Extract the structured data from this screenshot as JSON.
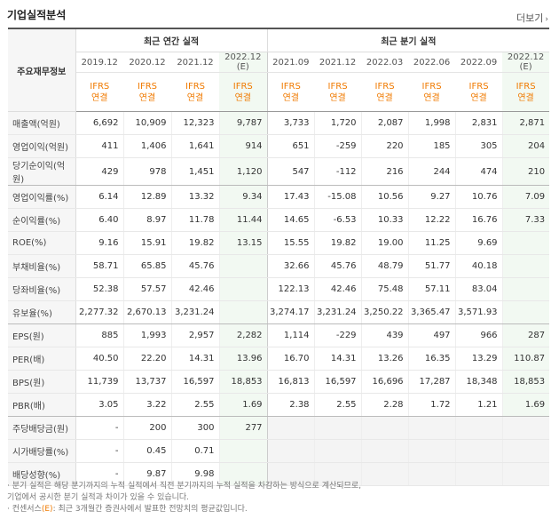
{
  "title": "기업실적분석",
  "more_label": "더보기",
  "header": {
    "main_label": "주요재무정보",
    "annual_label": "최근 연간 실적",
    "quarter_label": "최근 분기 실적",
    "annual_periods": [
      "2019.12",
      "2020.12",
      "2021.12",
      "2022.12"
    ],
    "annual_est": [
      false,
      false,
      false,
      true
    ],
    "quarter_periods": [
      "2021.09",
      "2021.12",
      "2022.03",
      "2022.06",
      "2022.09",
      "2022.12"
    ],
    "quarter_est": [
      false,
      false,
      false,
      false,
      false,
      true
    ],
    "est_mark": "(E)",
    "ifrs": "IFRS",
    "consol": "연결"
  },
  "rows": [
    {
      "label": "매출액(억원)",
      "annual": [
        "6,692",
        "10,909",
        "12,323",
        "9,787"
      ],
      "quarter": [
        "3,733",
        "1,720",
        "2,087",
        "1,998",
        "2,831",
        "2,871"
      ]
    },
    {
      "label": "영업이익(억원)",
      "annual": [
        "411",
        "1,406",
        "1,641",
        "914"
      ],
      "quarter": [
        "651",
        "-259",
        "220",
        "185",
        "305",
        "204"
      ]
    },
    {
      "label": "당기순이익(억원)",
      "annual": [
        "429",
        "978",
        "1,451",
        "1,120"
      ],
      "quarter": [
        "547",
        "-112",
        "216",
        "244",
        "474",
        "210"
      ]
    },
    {
      "label": "영업이익률(%)",
      "annual": [
        "6.14",
        "12.89",
        "13.32",
        "9.34"
      ],
      "quarter": [
        "17.43",
        "-15.08",
        "10.56",
        "9.27",
        "10.76",
        "7.09"
      ]
    },
    {
      "label": "순이익률(%)",
      "annual": [
        "6.40",
        "8.97",
        "11.78",
        "11.44"
      ],
      "quarter": [
        "14.65",
        "-6.53",
        "10.33",
        "12.22",
        "16.76",
        "7.33"
      ]
    },
    {
      "label": "ROE(%)",
      "annual": [
        "9.16",
        "15.91",
        "19.82",
        "13.15"
      ],
      "quarter": [
        "15.55",
        "19.82",
        "19.00",
        "11.25",
        "9.69",
        ""
      ]
    },
    {
      "label": "부채비율(%)",
      "annual": [
        "58.71",
        "65.85",
        "45.76",
        ""
      ],
      "quarter": [
        "32.66",
        "45.76",
        "48.79",
        "51.77",
        "40.18",
        ""
      ]
    },
    {
      "label": "당좌비율(%)",
      "annual": [
        "52.38",
        "57.57",
        "42.46",
        ""
      ],
      "quarter": [
        "122.13",
        "42.46",
        "75.48",
        "57.11",
        "83.04",
        ""
      ]
    },
    {
      "label": "유보율(%)",
      "annual": [
        "2,277.32",
        "2,670.13",
        "3,231.24",
        ""
      ],
      "quarter": [
        "3,274.17",
        "3,231.24",
        "3,250.22",
        "3,365.47",
        "3,571.93",
        ""
      ]
    },
    {
      "label": "EPS(원)",
      "annual": [
        "885",
        "1,993",
        "2,957",
        "2,282"
      ],
      "quarter": [
        "1,114",
        "-229",
        "439",
        "497",
        "966",
        "287"
      ]
    },
    {
      "label": "PER(배)",
      "annual": [
        "40.50",
        "22.20",
        "14.31",
        "13.96"
      ],
      "quarter": [
        "16.70",
        "14.31",
        "13.26",
        "16.35",
        "13.29",
        "110.87"
      ]
    },
    {
      "label": "BPS(원)",
      "annual": [
        "11,739",
        "13,737",
        "16,597",
        "18,853"
      ],
      "quarter": [
        "16,813",
        "16,597",
        "16,696",
        "17,287",
        "18,348",
        "18,853"
      ]
    },
    {
      "label": "PBR(배)",
      "annual": [
        "3.05",
        "3.22",
        "2.55",
        "1.69"
      ],
      "quarter": [
        "2.38",
        "2.55",
        "2.28",
        "1.72",
        "1.21",
        "1.69"
      ]
    },
    {
      "label": "주당배당금(원)",
      "annual": [
        "-",
        "200",
        "300",
        "277"
      ],
      "quarter": [
        "",
        "",
        "",
        "",
        "",
        ""
      ]
    },
    {
      "label": "시가배당률(%)",
      "annual": [
        "-",
        "0.45",
        "0.71",
        ""
      ],
      "quarter": [
        "",
        "",
        "",
        "",
        "",
        ""
      ]
    },
    {
      "label": "배당성향(%)",
      "annual": [
        "-",
        "9.87",
        "9.98",
        ""
      ],
      "quarter": [
        "",
        "",
        "",
        "",
        "",
        ""
      ]
    }
  ],
  "separators_after": [
    2,
    8,
    12
  ],
  "notes": [
    "· 분기 실적은 해당 분기까지의 누적 실적에서 직전 분기까지의 누적 실적을 차감하는 방식으로 계산되므로,",
    "  기업에서 공시한 분기 실적과 차이가 있을 수 있습니다.",
    "· 컨센서스",
    ": 최근 3개월간 증권사에서 발표한 전망치의 평균값입니다."
  ],
  "colors": {
    "accent": "#f07a00",
    "negative": "#e12222",
    "estimate_bg": "#f2f9f2"
  }
}
